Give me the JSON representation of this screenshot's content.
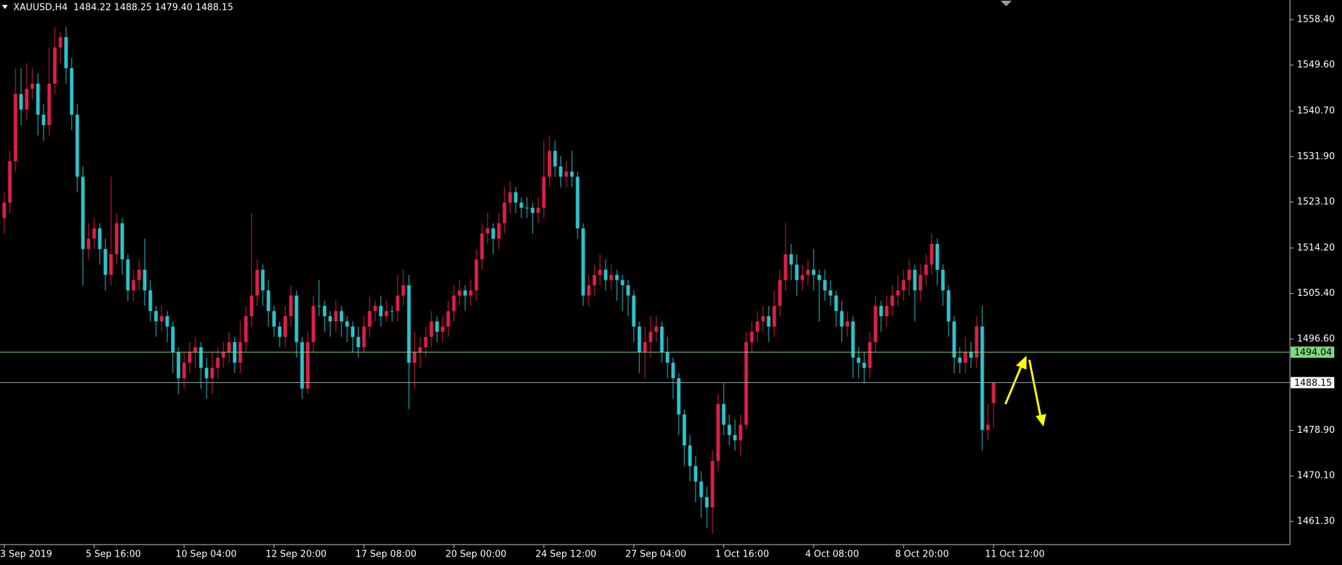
{
  "chart_data": {
    "type": "candlestick",
    "title": "XAUUSD,H4  1484.22 1488.25 1479.40 1488.15",
    "up_color": "#dc1f47",
    "down_color": "#2cc4cc",
    "ylim": [
      1456.8,
      1562.2
    ],
    "yticks": [
      {
        "value": 1558.4,
        "label": "1558.40"
      },
      {
        "value": 1549.6,
        "label": "1549.60"
      },
      {
        "value": 1540.7,
        "label": "1540.70"
      },
      {
        "value": 1531.9,
        "label": "1531.90"
      },
      {
        "value": 1523.1,
        "label": "1523.10"
      },
      {
        "value": 1514.2,
        "label": "1514.20"
      },
      {
        "value": 1505.4,
        "label": "1505.40"
      },
      {
        "value": 1496.6,
        "label": "1496.60"
      },
      {
        "value": 1478.9,
        "label": "1478.90"
      },
      {
        "value": 1470.1,
        "label": "1470.10"
      },
      {
        "value": 1461.3,
        "label": "1461.30"
      }
    ],
    "levels": [
      {
        "value": 1494.04,
        "color": "#7fd97f"
      },
      {
        "value": 1488.15,
        "color": "#9aa7a7"
      }
    ],
    "categories": [
      "3 Sep 2019",
      null,
      null,
      null,
      null,
      null,
      null,
      null,
      null,
      null,
      null,
      null,
      null,
      null,
      null,
      null,
      "5 Sep 16:00",
      null,
      null,
      null,
      null,
      null,
      null,
      null,
      null,
      null,
      null,
      null,
      null,
      null,
      null,
      null,
      "10 Sep 04:00",
      null,
      null,
      null,
      null,
      null,
      null,
      null,
      null,
      null,
      null,
      null,
      null,
      null,
      null,
      null,
      "12 Sep 20:00",
      null,
      null,
      null,
      null,
      null,
      null,
      null,
      null,
      null,
      null,
      null,
      null,
      null,
      null,
      null,
      "17 Sep 08:00",
      null,
      null,
      null,
      null,
      null,
      null,
      null,
      null,
      null,
      null,
      null,
      null,
      null,
      null,
      null,
      "20 Sep 00:00",
      null,
      null,
      null,
      null,
      null,
      null,
      null,
      null,
      null,
      null,
      null,
      null,
      null,
      null,
      null,
      "24 Sep 12:00",
      null,
      null,
      null,
      null,
      null,
      null,
      null,
      null,
      null,
      null,
      null,
      null,
      null,
      null,
      null,
      "27 Sep 04:00",
      null,
      null,
      null,
      null,
      null,
      null,
      null,
      null,
      null,
      null,
      null,
      null,
      null,
      null,
      null,
      "1 Oct 16:00",
      null,
      null,
      null,
      null,
      null,
      null,
      null,
      null,
      null,
      null,
      null,
      null,
      null,
      null,
      null,
      "4 Oct 08:00",
      null,
      null,
      null,
      null,
      null,
      null,
      null,
      null,
      null,
      null,
      null,
      null,
      null,
      null,
      null,
      "8 Oct 20:00",
      null,
      null,
      null,
      null,
      null,
      null,
      null,
      null,
      null,
      null,
      null,
      null,
      null,
      null,
      null,
      "11 Oct 12:00"
    ],
    "open": [
      1520,
      1523,
      1531,
      1544,
      1541,
      1545,
      1546,
      1540,
      1538,
      1546,
      1553,
      1555,
      1549,
      1540,
      1528,
      1514,
      1516,
      1518,
      1514,
      1509,
      1513,
      1519,
      1512,
      1506,
      1508,
      1510,
      1506,
      1502,
      1500,
      1501,
      1499,
      1494,
      1489,
      1492,
      1494,
      1495,
      1491,
      1489,
      1491,
      1493,
      1494,
      1496,
      1492,
      1496,
      1501,
      1505,
      1510,
      1506,
      1502,
      1499,
      1497,
      1501,
      1505,
      1496,
      1487,
      1496,
      1503,
      1503,
      1501,
      1500,
      1502,
      1500,
      1499,
      1497,
      1495,
      1499,
      1502,
      1503,
      1501,
      1502,
      1502,
      1505,
      1507,
      1492,
      1494,
      1495,
      1497,
      1500,
      1498,
      1499,
      1502,
      1505,
      1506,
      1505,
      1506,
      1512,
      1517,
      1518,
      1516,
      1519,
      1523,
      1525,
      1523,
      1522,
      1522,
      1521,
      1522,
      1528,
      1533,
      1530,
      1528,
      1529,
      1528,
      1518,
      1505,
      1507,
      1509,
      1510,
      1508,
      1509,
      1508,
      1507,
      1505,
      1499,
      1494,
      1496,
      1498,
      1499,
      1494,
      1492,
      1489,
      1482,
      1476,
      1472,
      1469,
      1466,
      1464,
      1473,
      1484,
      1480,
      1478,
      1477,
      1480,
      1496,
      1498,
      1500,
      1501,
      1499,
      1503,
      1508,
      1513,
      1511,
      1508,
      1509,
      1510,
      1509,
      1508,
      1506,
      1505,
      1502,
      1499,
      1500,
      1493,
      1492,
      1491,
      1496,
      1503,
      1501,
      1503,
      1505,
      1506,
      1508,
      1510,
      1506,
      1509,
      1511,
      1515,
      1510,
      1506,
      1500,
      1493,
      1492,
      1494,
      1493,
      1499,
      1479,
      1484.22
    ],
    "high": [
      1525,
      1533,
      1549,
      1549,
      1550,
      1549,
      1548,
      1542,
      1553,
      1557,
      1556,
      1557,
      1551,
      1542,
      1530,
      1519,
      1520,
      1519,
      1516,
      1528,
      1521,
      1520,
      1513,
      1510,
      1512,
      1516,
      1508,
      1503,
      1503,
      1502,
      1500,
      1495,
      1494,
      1496,
      1497,
      1496,
      1493,
      1494,
      1495,
      1496,
      1498,
      1497,
      1500,
      1503,
      1521,
      1512,
      1511,
      1508,
      1503,
      1500,
      1503,
      1507,
      1506,
      1497,
      1498,
      1505,
      1508,
      1504,
      1502,
      1504,
      1503,
      1501,
      1500,
      1499,
      1501,
      1505,
      1504,
      1505,
      1504,
      1503,
      1509,
      1510,
      1509,
      1498,
      1497,
      1499,
      1502,
      1501,
      1501,
      1504,
      1507,
      1508,
      1507,
      1508,
      1514,
      1519,
      1521,
      1519,
      1521,
      1526,
      1527,
      1526,
      1524,
      1524,
      1523,
      1524,
      1535,
      1536,
      1535,
      1532,
      1531,
      1533,
      1529,
      1519,
      1509,
      1511,
      1513,
      1512,
      1511,
      1510,
      1509,
      1508,
      1506,
      1500,
      1499,
      1501,
      1501,
      1500,
      1497,
      1493,
      1490,
      1483,
      1478,
      1474,
      1471,
      1468,
      1475,
      1486,
      1488,
      1482,
      1481,
      1482,
      1498,
      1500,
      1502,
      1503,
      1503,
      1506,
      1510,
      1519,
      1515,
      1513,
      1511,
      1512,
      1514,
      1510,
      1510,
      1508,
      1506,
      1504,
      1502,
      1501,
      1495,
      1494,
      1498,
      1505,
      1504,
      1505,
      1507,
      1509,
      1510,
      1512,
      1511,
      1511,
      1513,
      1517,
      1516,
      1511,
      1507,
      1501,
      1495,
      1497,
      1496,
      1501,
      1503,
      1484,
      1488.25
    ],
    "low": [
      1517,
      1521,
      1529,
      1538,
      1539,
      1543,
      1536,
      1535,
      1536,
      1544,
      1550,
      1546,
      1537,
      1525,
      1507,
      1512,
      1514,
      1511,
      1506,
      1507,
      1511,
      1509,
      1504,
      1504,
      1506,
      1503,
      1500,
      1497,
      1498,
      1496,
      1490,
      1486,
      1487,
      1490,
      1491,
      1487,
      1485,
      1486,
      1489,
      1491,
      1492,
      1490,
      1490,
      1494,
      1499,
      1503,
      1503,
      1499,
      1497,
      1495,
      1495,
      1499,
      1493,
      1485,
      1486,
      1494,
      1501,
      1498,
      1497,
      1498,
      1497,
      1496,
      1494,
      1493,
      1494,
      1497,
      1500,
      1499,
      1500,
      1500,
      1500,
      1503,
      1483,
      1487,
      1491,
      1493,
      1495,
      1496,
      1496,
      1497,
      1500,
      1503,
      1502,
      1503,
      1504,
      1510,
      1515,
      1513,
      1514,
      1517,
      1521,
      1521,
      1520,
      1520,
      1517,
      1519,
      1520,
      1526,
      1528,
      1526,
      1526,
      1526,
      1516,
      1503,
      1503,
      1505,
      1507,
      1506,
      1506,
      1504,
      1502,
      1501,
      1496,
      1490,
      1489,
      1493,
      1496,
      1492,
      1489,
      1485,
      1478,
      1472,
      1469,
      1465,
      1462,
      1460,
      1459,
      1471,
      1478,
      1476,
      1475,
      1474,
      1479,
      1494,
      1496,
      1498,
      1496,
      1497,
      1501,
      1506,
      1508,
      1505,
      1506,
      1507,
      1506,
      1500,
      1504,
      1503,
      1499,
      1496,
      1497,
      1489,
      1489,
      1488,
      1489,
      1494,
      1498,
      1499,
      1501,
      1503,
      1504,
      1505,
      1500,
      1504,
      1507,
      1509,
      1507,
      1503,
      1497,
      1490,
      1490,
      1490,
      1491,
      1491,
      1475,
      1477,
      1479.4
    ],
    "close": [
      1523,
      1531,
      1544,
      1541,
      1545,
      1546,
      1540,
      1538,
      1546,
      1553,
      1555,
      1549,
      1540,
      1528,
      1514,
      1516,
      1518,
      1514,
      1509,
      1513,
      1519,
      1512,
      1506,
      1508,
      1510,
      1506,
      1502,
      1500,
      1501,
      1499,
      1494,
      1489,
      1492,
      1494,
      1495,
      1491,
      1489,
      1491,
      1493,
      1494,
      1496,
      1492,
      1496,
      1501,
      1505,
      1510,
      1506,
      1502,
      1499,
      1497,
      1501,
      1505,
      1496,
      1487,
      1496,
      1503,
      1503,
      1501,
      1500,
      1502,
      1500,
      1499,
      1497,
      1495,
      1499,
      1502,
      1503,
      1501,
      1502,
      1502,
      1505,
      1507,
      1492,
      1494,
      1495,
      1497,
      1500,
      1498,
      1499,
      1502,
      1505,
      1506,
      1505,
      1506,
      1512,
      1517,
      1518,
      1516,
      1519,
      1523,
      1525,
      1523,
      1522,
      1522,
      1521,
      1522,
      1528,
      1533,
      1530,
      1528,
      1529,
      1528,
      1518,
      1505,
      1507,
      1509,
      1510,
      1508,
      1509,
      1508,
      1507,
      1505,
      1499,
      1494,
      1496,
      1498,
      1499,
      1494,
      1492,
      1489,
      1482,
      1476,
      1472,
      1469,
      1466,
      1464,
      1473,
      1484,
      1480,
      1478,
      1477,
      1480,
      1496,
      1498,
      1500,
      1501,
      1499,
      1503,
      1508,
      1513,
      1511,
      1508,
      1509,
      1510,
      1509,
      1508,
      1506,
      1505,
      1502,
      1499,
      1500,
      1493,
      1492,
      1491,
      1496,
      1503,
      1501,
      1503,
      1505,
      1506,
      1508,
      1510,
      1506,
      1509,
      1511,
      1515,
      1510,
      1506,
      1500,
      1493,
      1492,
      1494,
      1493,
      1499,
      1479,
      1480,
      1488.15
    ]
  }
}
